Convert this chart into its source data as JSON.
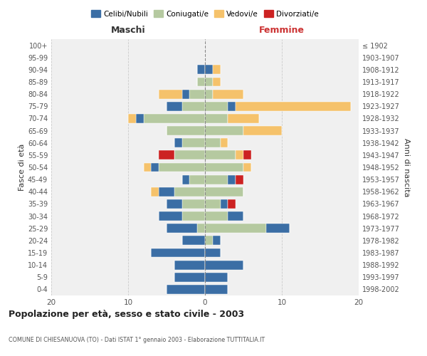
{
  "age_groups": [
    "100+",
    "95-99",
    "90-94",
    "85-89",
    "80-84",
    "75-79",
    "70-74",
    "65-69",
    "60-64",
    "55-59",
    "50-54",
    "45-49",
    "40-44",
    "35-39",
    "30-34",
    "25-29",
    "20-24",
    "15-19",
    "10-14",
    "5-9",
    "0-4"
  ],
  "birth_years": [
    "≤ 1902",
    "1903-1907",
    "1908-1912",
    "1913-1917",
    "1918-1922",
    "1923-1927",
    "1928-1932",
    "1933-1937",
    "1938-1942",
    "1943-1947",
    "1948-1952",
    "1953-1957",
    "1958-1962",
    "1963-1967",
    "1968-1972",
    "1973-1977",
    "1978-1982",
    "1983-1987",
    "1988-1992",
    "1993-1997",
    "1998-2002"
  ],
  "colors": {
    "celibe": "#3b6ea5",
    "coniugato": "#b5c9a0",
    "vedovo": "#f5c26b",
    "divorziato": "#cc2222"
  },
  "maschi": {
    "celibe": [
      0,
      0,
      1,
      0,
      1,
      2,
      1,
      0,
      1,
      0,
      1,
      1,
      2,
      2,
      3,
      4,
      3,
      7,
      4,
      4,
      5
    ],
    "coniugato": [
      0,
      0,
      0,
      1,
      2,
      3,
      8,
      5,
      3,
      4,
      6,
      2,
      4,
      3,
      3,
      1,
      0,
      0,
      0,
      0,
      0
    ],
    "vedovo": [
      0,
      0,
      0,
      0,
      3,
      0,
      1,
      0,
      0,
      0,
      1,
      0,
      1,
      0,
      0,
      0,
      0,
      0,
      0,
      0,
      0
    ],
    "divorziato": [
      0,
      0,
      0,
      0,
      0,
      0,
      0,
      0,
      0,
      2,
      0,
      0,
      0,
      0,
      0,
      0,
      0,
      0,
      0,
      0,
      0
    ]
  },
  "femmine": {
    "nubile": [
      0,
      0,
      1,
      0,
      0,
      1,
      0,
      0,
      0,
      0,
      0,
      1,
      0,
      1,
      2,
      3,
      1,
      2,
      5,
      3,
      3
    ],
    "coniugata": [
      0,
      0,
      0,
      1,
      1,
      3,
      3,
      5,
      2,
      4,
      5,
      3,
      5,
      2,
      3,
      8,
      1,
      0,
      0,
      0,
      0
    ],
    "vedova": [
      0,
      0,
      1,
      1,
      4,
      15,
      4,
      5,
      1,
      1,
      1,
      0,
      0,
      0,
      0,
      0,
      0,
      0,
      0,
      0,
      0
    ],
    "divorziata": [
      0,
      0,
      0,
      0,
      0,
      0,
      0,
      0,
      0,
      1,
      0,
      1,
      0,
      1,
      0,
      0,
      0,
      0,
      0,
      0,
      0
    ]
  },
  "title": "Popolazione per età, sesso e stato civile - 2003",
  "subtitle": "COMUNE DI CHIESANUOVA (TO) - Dati ISTAT 1° gennaio 2003 - Elaborazione TUTTITALIA.IT",
  "xlabel_left": "Maschi",
  "xlabel_right": "Femmine",
  "ylabel_left": "Fasce di età",
  "ylabel_right": "Anni di nascita",
  "xlim": 20,
  "legend_labels": [
    "Celibi/Nubili",
    "Coniugati/e",
    "Vedovi/e",
    "Divorziati/e"
  ],
  "bg_color": "#ffffff",
  "grid_color": "#cccccc"
}
